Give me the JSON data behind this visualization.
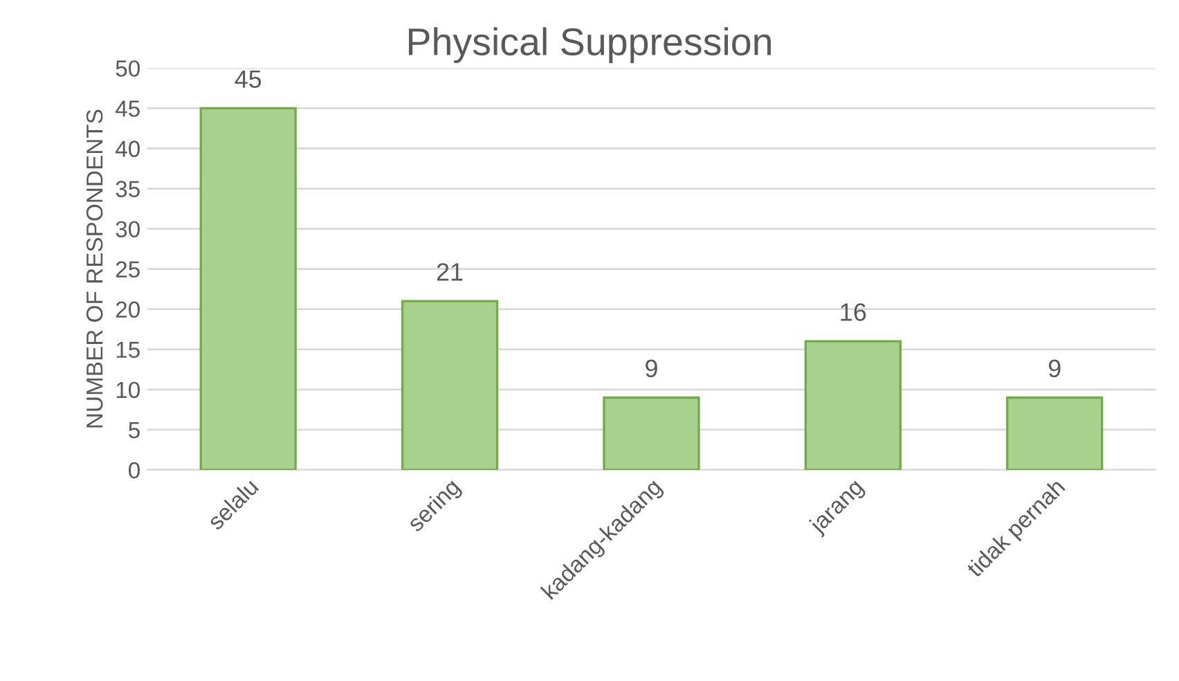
{
  "chart_data": {
    "type": "bar",
    "title": "Physical Suppression",
    "ylabel": "NUMBER OF RESPONDENTS",
    "categories": [
      "selalu",
      "sering",
      "kadang-kadang",
      "jarang",
      "tidak pernah"
    ],
    "values": [
      45,
      21,
      9,
      16,
      9
    ],
    "color": "#a9d18e",
    "ylim": [
      0,
      50
    ],
    "yticks": [
      0,
      5,
      10,
      15,
      20,
      25,
      30,
      35,
      40,
      45,
      50
    ],
    "grid": "y",
    "data_labels": true,
    "legend": false
  }
}
